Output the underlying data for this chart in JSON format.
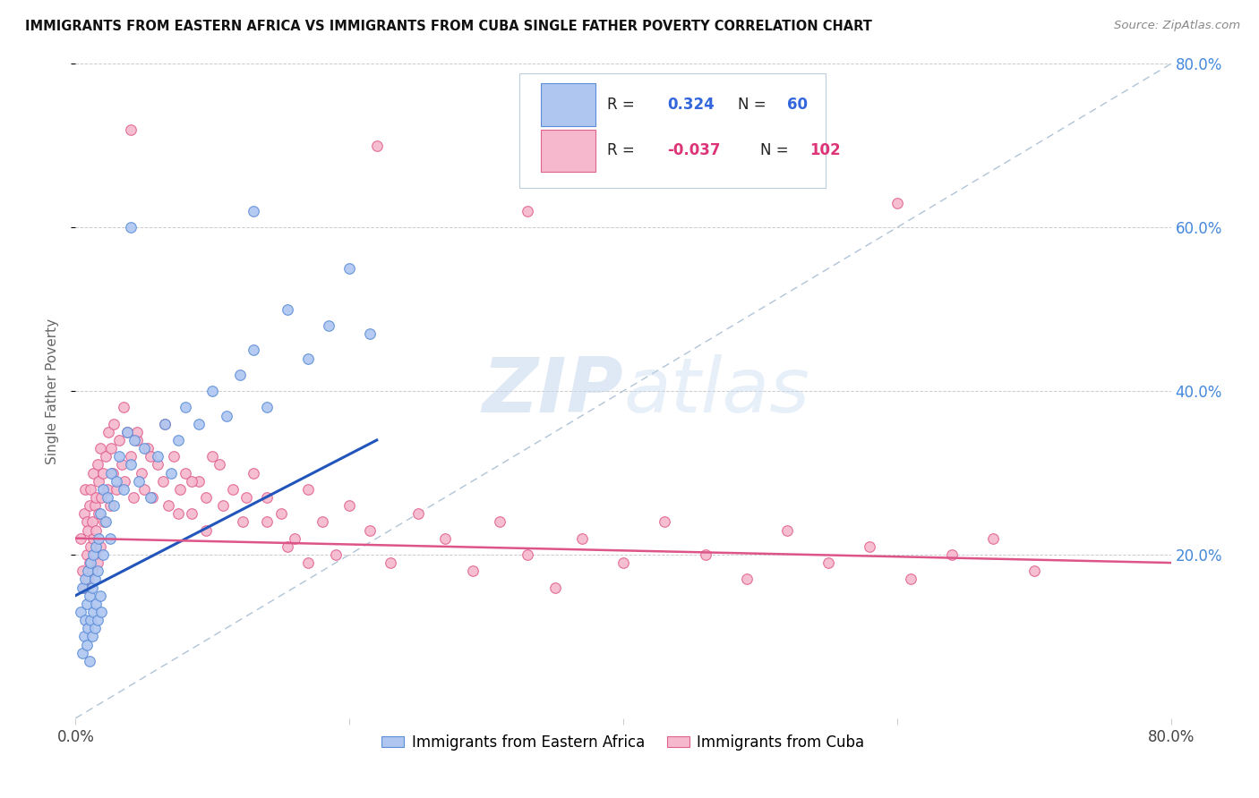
{
  "title": "IMMIGRANTS FROM EASTERN AFRICA VS IMMIGRANTS FROM CUBA SINGLE FATHER POVERTY CORRELATION CHART",
  "source": "Source: ZipAtlas.com",
  "ylabel": "Single Father Poverty",
  "legend_label1": "Immigrants from Eastern Africa",
  "legend_label2": "Immigrants from Cuba",
  "r1": 0.324,
  "n1": 60,
  "r2": -0.037,
  "n2": 102,
  "color1": "#aec6f0",
  "color2": "#f5b8cc",
  "color1_edge": "#5b8dd9",
  "color2_edge": "#e06090",
  "trendline1_color": "#2255bb",
  "trendline2_color": "#dd5588",
  "trendline_dash_color": "#b0c4d8",
  "background": "#ffffff",
  "watermark_zip": "ZIP",
  "watermark_atlas": "atlas",
  "xlim": [
    0.0,
    0.8
  ],
  "ylim": [
    0.0,
    0.8
  ],
  "yticks": [
    0.2,
    0.4,
    0.6,
    0.8
  ],
  "ytick_labels": [
    "20.0%",
    "40.0%",
    "60.0%",
    "80.0%"
  ]
}
